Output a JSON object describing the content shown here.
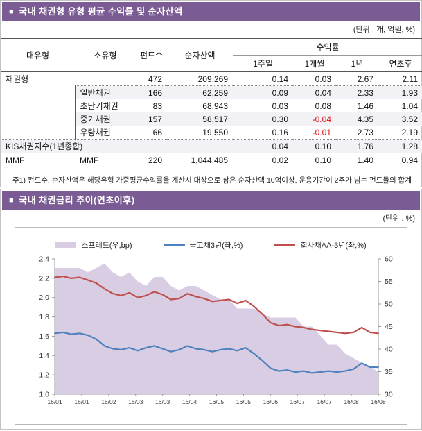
{
  "section1": {
    "bullet": "■",
    "title": "국내 채권형 유형 평균 수익률 및 순자산액",
    "unit": "(단위 : 개, 억원, %)",
    "table": {
      "headers": {
        "major": "대유형",
        "sub": "소유형",
        "funds": "펀드수",
        "assets": "순자산액",
        "returns": "수익률",
        "w1": "1주일",
        "m1": "1개월",
        "y1": "1년",
        "ytd": "연초후"
      },
      "rows": [
        {
          "major": "채권형",
          "sub": "",
          "funds": "472",
          "assets": "209,269",
          "w1": "0.14",
          "m1": "0.03",
          "y1": "2.67",
          "ytd": "2.11"
        },
        {
          "major": "",
          "sub": "일반채권",
          "funds": "166",
          "assets": "62,259",
          "w1": "0.09",
          "m1": "0.04",
          "y1": "2.33",
          "ytd": "1.93"
        },
        {
          "major": "",
          "sub": "초단기채권",
          "funds": "83",
          "assets": "68,943",
          "w1": "0.03",
          "m1": "0.08",
          "y1": "1.46",
          "ytd": "1.04"
        },
        {
          "major": "",
          "sub": "중기채권",
          "funds": "157",
          "assets": "58,517",
          "w1": "0.30",
          "m1": "-0.04",
          "y1": "4.35",
          "ytd": "3.52"
        },
        {
          "major": "",
          "sub": "우량채권",
          "funds": "66",
          "assets": "19,550",
          "w1": "0.16",
          "m1": "-0.01",
          "y1": "2.73",
          "ytd": "2.19"
        },
        {
          "major": "KIS채권지수(1년종합)",
          "sub": "",
          "funds": "",
          "assets": "",
          "w1": "0.04",
          "m1": "0.10",
          "y1": "1.76",
          "ytd": "1.28"
        },
        {
          "major": "MMF",
          "sub": "MMF",
          "funds": "220",
          "assets": "1,044,485",
          "w1": "0.02",
          "m1": "0.10",
          "y1": "1.40",
          "ytd": "0.94"
        }
      ]
    },
    "footnote": "주1) 펀드수, 순자산액은 해당유형 가중평균수익률을 계산시 대상으로 삼은 순자산액 10억이상, 운용기간이 2주가 넘는 펀드들의 합계"
  },
  "section2": {
    "bullet": "■",
    "title": "국내 채권금리 추이(연초이후)",
    "unit": "(단위 : %)"
  },
  "theme": {
    "header_bg": "#7A5B93",
    "negative": "#DD1111",
    "shade_row": "#F2F1F5"
  },
  "chart_data": {
    "type": "line",
    "title": "국내 채권금리 추이(연초이후)",
    "x_labels": [
      "16/01",
      "16/01",
      "16/02",
      "16/03",
      "16/03",
      "16/04",
      "16/05",
      "16/05",
      "16/06",
      "16/07",
      "16/07",
      "16/08",
      "16/08"
    ],
    "left_axis": {
      "label": "%",
      "min": 1.0,
      "max": 2.4,
      "ticks": [
        2.4,
        2.2,
        2.0,
        1.8,
        1.6,
        1.4,
        1.2,
        1.0
      ]
    },
    "right_axis": {
      "label": "bp",
      "min": 30,
      "max": 60,
      "ticks": [
        60,
        55,
        50,
        45,
        40,
        35,
        30
      ]
    },
    "legend_position": "top",
    "grid": false,
    "series": [
      {
        "name": "스프레드(우,bp)",
        "type": "area",
        "axis": "right",
        "color": "#D9CDE4",
        "values": [
          58,
          58,
          58,
          58,
          57,
          58,
          59,
          57,
          56,
          57,
          55,
          54,
          56,
          56,
          54,
          53,
          54,
          54,
          53,
          52,
          51,
          51,
          49,
          49,
          49,
          48,
          47,
          47,
          47,
          47,
          45,
          45,
          43,
          41,
          41,
          39,
          38,
          37,
          36,
          35
        ]
      },
      {
        "name": "국고채3년(좌,%)",
        "type": "line",
        "axis": "left",
        "color": "#4F81BD",
        "values": [
          1.63,
          1.64,
          1.62,
          1.63,
          1.61,
          1.57,
          1.5,
          1.47,
          1.46,
          1.48,
          1.45,
          1.48,
          1.5,
          1.47,
          1.44,
          1.46,
          1.5,
          1.47,
          1.46,
          1.44,
          1.46,
          1.47,
          1.45,
          1.48,
          1.42,
          1.35,
          1.27,
          1.24,
          1.25,
          1.23,
          1.24,
          1.22,
          1.23,
          1.24,
          1.23,
          1.24,
          1.26,
          1.32,
          1.28,
          1.28
        ]
      },
      {
        "name": "회사채AA-3년(좌,%)",
        "type": "line",
        "axis": "left",
        "color": "#C0504D",
        "values": [
          2.21,
          2.22,
          2.2,
          2.21,
          2.18,
          2.15,
          2.09,
          2.04,
          2.02,
          2.05,
          2.0,
          2.02,
          2.06,
          2.03,
          1.98,
          1.99,
          2.04,
          2.01,
          1.99,
          1.96,
          1.97,
          1.98,
          1.94,
          1.97,
          1.91,
          1.83,
          1.74,
          1.71,
          1.72,
          1.7,
          1.69,
          1.67,
          1.66,
          1.65,
          1.64,
          1.63,
          1.64,
          1.69,
          1.64,
          1.63
        ]
      }
    ]
  }
}
